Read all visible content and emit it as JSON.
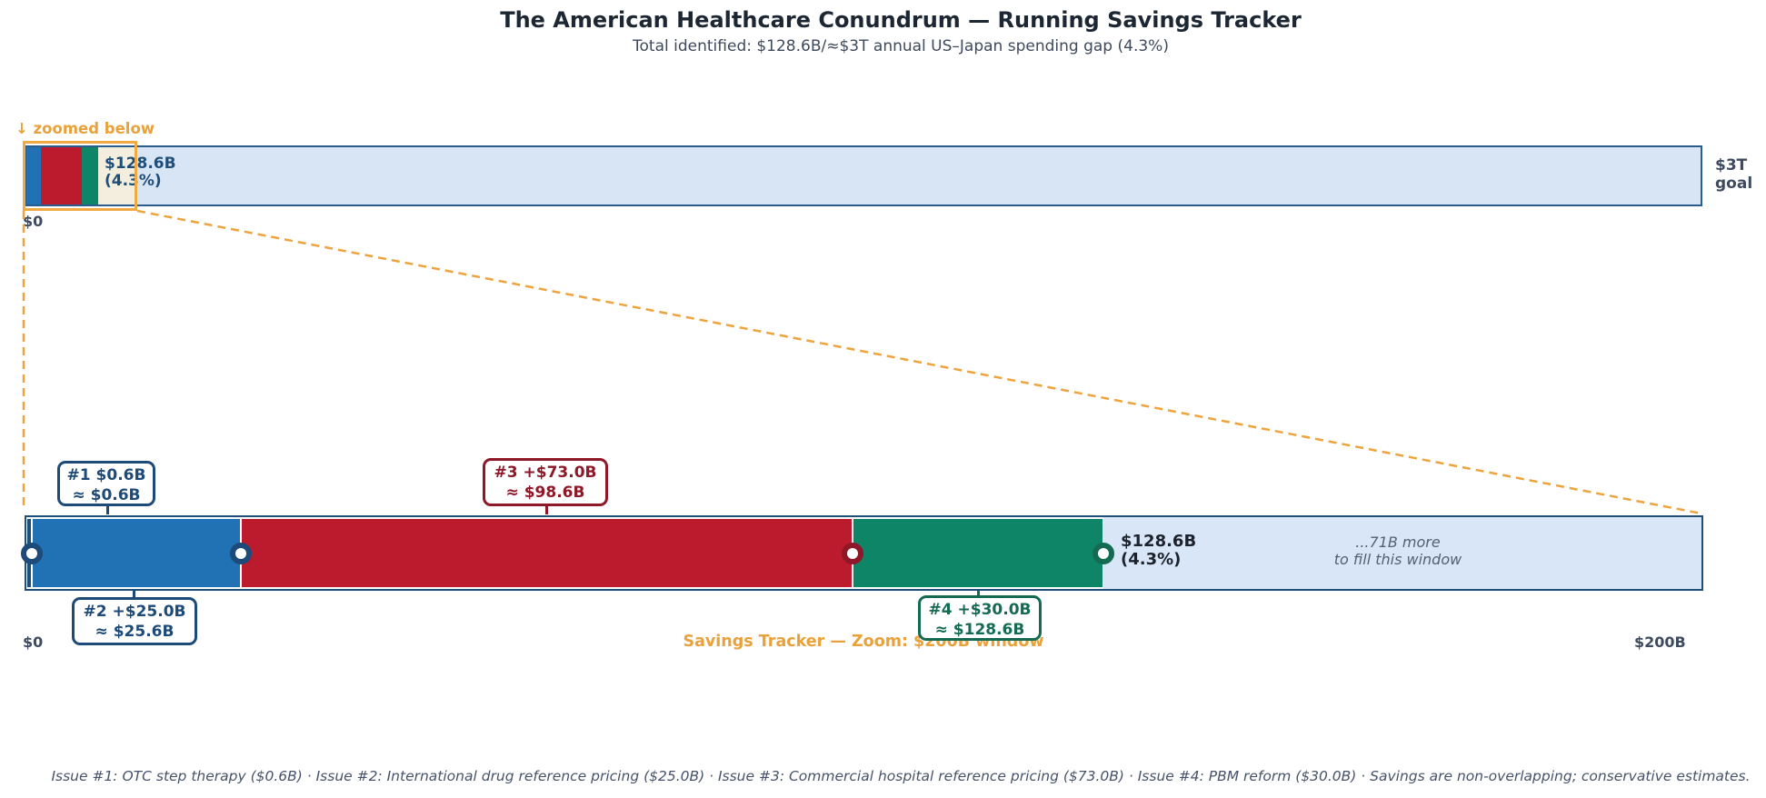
{
  "header": {
    "title": "The American Healthcare Conundrum — Running Savings Tracker",
    "subtitle": "Total identified: $128.6B/≈$3T annual US–Japan spending gap (4.3%)"
  },
  "colors": {
    "accent_orange": "#eda43e",
    "navy": "#1d4a78",
    "dark_red": "#8e1728",
    "dark_green": "#156b52",
    "goal_bar_fill": "#d8e5f5",
    "goal_bar_border": "#2a5c8e",
    "zoom_bar_remainder_fill": "#d9e6f7",
    "zoom_bar_border": "#1f4e79",
    "zoom_window_fill": "#f3eedd"
  },
  "top_bar": {
    "zoom_note": "↓ zoomed below",
    "annotation_line1": "$128.6B",
    "annotation_line2": "(4.3%)",
    "right_label_line1": "$3T",
    "right_label_line2": "goal",
    "x0_label": "$0"
  },
  "zoom_bar": {
    "callouts": [
      {
        "line1": "#1  $0.6B",
        "line2": "≈ $0.6B"
      },
      {
        "line1": "#2  +$25.0B",
        "line2": "≈ $25.6B"
      },
      {
        "line1": "#3  +$73.0B",
        "line2": "≈ $98.6B"
      },
      {
        "line1": "#4  +$30.0B",
        "line2": "≈ $128.6B"
      }
    ],
    "total_line1": "$128.6B",
    "total_line2": "(4.3%)",
    "remaining_note_line1": "...71B more",
    "remaining_note_line2": "to fill this window",
    "x0_label": "$0",
    "x1_label": "$200B",
    "axis_title": "Savings Tracker — Zoom: $200B window"
  },
  "footnote": "Issue #1: OTC step therapy ($0.6B)  ·  Issue #2: International drug reference pricing ($25.0B)  ·  Issue #3: Commercial hospital reference pricing ($73.0B)  ·  Issue #4: PBM reform ($30.0B)  ·  Savings are non-overlapping; conservative estimates.",
  "chart_data": {
    "type": "bar",
    "title": "The American Healthcare Conundrum — Running Savings Tracker",
    "subtitle": "Total identified: $128.6B/≈$3T annual US–Japan spending gap (4.3%)",
    "units": "USD billions",
    "goal_total": 3000,
    "goal_label": "$3T goal",
    "identified_total": 128.6,
    "identified_pct_of_goal": 4.3,
    "zoom_window": [
      0,
      200
    ],
    "remaining_in_window": 71.4,
    "segments": [
      {
        "issue": 1,
        "label": "OTC step therapy",
        "value": 0.6,
        "cumulative": 0.6,
        "color": "#1f4e79",
        "dark": "#1d4a78"
      },
      {
        "issue": 2,
        "label": "International drug reference pricing",
        "value": 25.0,
        "cumulative": 25.6,
        "color": "#2171b5",
        "dark": "#1d4a78"
      },
      {
        "issue": 3,
        "label": "Commercial hospital reference pricing",
        "value": 73.0,
        "cumulative": 98.6,
        "color": "#bb1b2d",
        "dark": "#8e1728"
      },
      {
        "issue": 4,
        "label": "PBM reform",
        "value": 30.0,
        "cumulative": 128.6,
        "color": "#0f8568",
        "dark": "#156b52"
      }
    ]
  }
}
